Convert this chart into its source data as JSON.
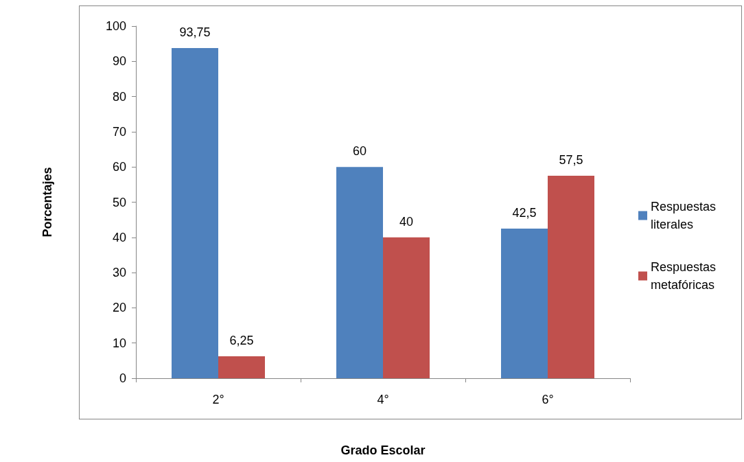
{
  "chart_data": {
    "type": "bar",
    "xlabel": "Grado Escolar",
    "ylabel": "Porcentajes",
    "categories": [
      "2°",
      "4°",
      "6°"
    ],
    "series": [
      {
        "name": "Respuestas literales",
        "color": "#4f81bd",
        "values": [
          93.75,
          60,
          42.5
        ],
        "value_labels": [
          "93,75",
          "60",
          "42,5"
        ]
      },
      {
        "name": "Respuestas metafóricas",
        "color": "#c0504d",
        "values": [
          6.25,
          40,
          57.5
        ],
        "value_labels": [
          "6,25",
          "40",
          "57,5"
        ]
      }
    ],
    "ylim": [
      0,
      100
    ],
    "yticks": [
      0,
      10,
      20,
      30,
      40,
      50,
      60,
      70,
      80,
      90,
      100
    ],
    "grid": false,
    "legend": "right"
  }
}
